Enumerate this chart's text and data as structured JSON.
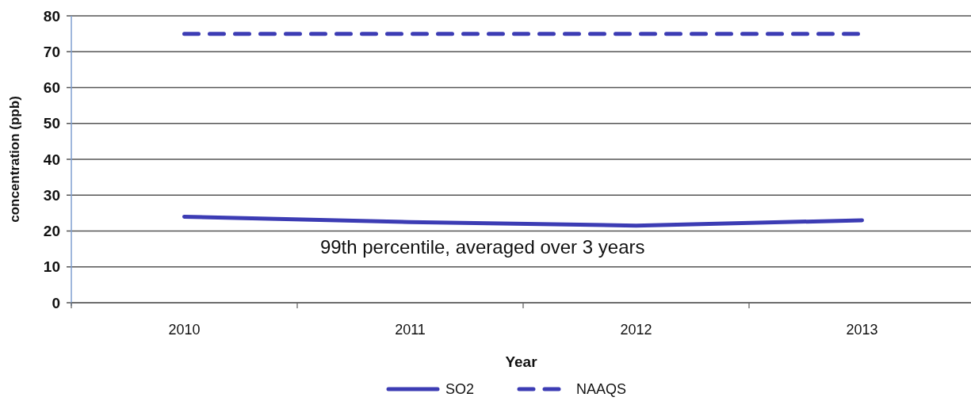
{
  "chart_data": {
    "type": "line",
    "xlabel": "Year",
    "ylabel": "concentration (ppb)",
    "categories": [
      "2010",
      "2011",
      "2012",
      "2013"
    ],
    "series": [
      {
        "name": "SO2",
        "color": "#3c3cb4",
        "values": [
          24,
          22.5,
          21.5,
          23
        ]
      },
      {
        "name": "NAAQS",
        "color": "#3c3cb4",
        "values": [
          75,
          75,
          75,
          75
        ],
        "line_style": "dashed"
      }
    ],
    "ylim": [
      0,
      80
    ],
    "yticks": [
      0,
      10,
      20,
      30,
      40,
      50,
      60,
      70,
      80
    ],
    "grid": "y",
    "legend": "bottom",
    "annotations": [
      "99th percentile, averaged over 3 years"
    ]
  }
}
